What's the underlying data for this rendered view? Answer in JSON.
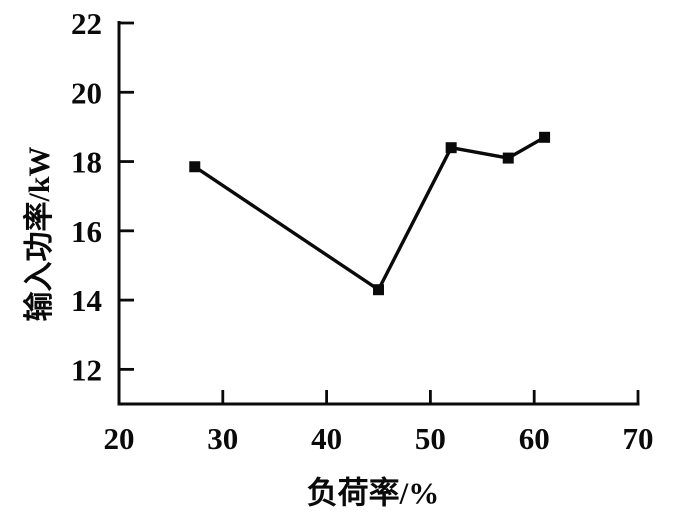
{
  "chart_data": {
    "type": "line",
    "title": "",
    "xlabel": "负荷率/%",
    "ylabel": "输入功率/kW",
    "series": [
      {
        "name": "输入功率",
        "x": [
          27.3,
          45,
          52,
          57.5,
          61
        ],
        "y": [
          17.85,
          14.3,
          18.4,
          18.1,
          18.7
        ]
      }
    ],
    "xlim": [
      20,
      70
    ],
    "ylim": [
      11,
      22
    ],
    "x_ticks": [
      "20",
      "30",
      "40",
      "50",
      "60",
      "70"
    ],
    "x_tick_values": [
      20,
      30,
      40,
      50,
      60,
      70
    ],
    "y_ticks": [
      "12",
      "14",
      "16",
      "18",
      "20",
      "22"
    ],
    "y_tick_values": [
      12,
      14,
      16,
      18,
      20,
      22
    ],
    "grid": false,
    "legend_position": "none",
    "marker": "square",
    "colors": {
      "line": "#0a0a0a",
      "marker": "#0a0a0a",
      "axis": "#0a0a0a",
      "text": "#0a0a0a",
      "background": "#ffffff"
    }
  }
}
